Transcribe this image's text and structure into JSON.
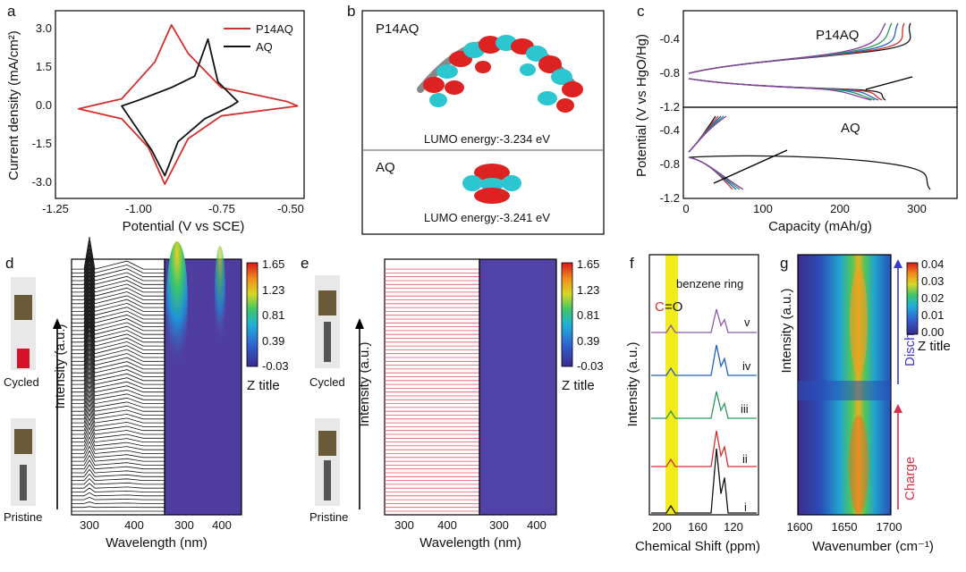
{
  "colors": {
    "p14aq": "#d0302e",
    "aq": "#111111",
    "highlight": "#f2ec1e",
    "discharge_arrow": "#3a3ac8",
    "charge_arrow": "#d8304a"
  },
  "panels": {
    "a": {
      "letter": "a",
      "ylabel": "Current density (mA/cm²)",
      "xlabel": "Potential (V vs SCE)",
      "xticks": [
        "-1.25",
        "-1.00",
        "-0.75",
        "-0.50"
      ],
      "yticks": [
        "3.0",
        "1.5",
        "0.0",
        "-1.5",
        "-3.0"
      ],
      "legend": [
        "P14AQ",
        "AQ"
      ]
    },
    "b": {
      "letter": "b",
      "top_label": "P14AQ",
      "top_energy": "LUMO energy:-3.234 eV",
      "bottom_label": "AQ",
      "bottom_energy": "LUMO energy:-3.241 eV"
    },
    "c": {
      "letter": "c",
      "ylabel": "Potential (V vs HgO/Hg)",
      "xlabel": "Capacity (mAh/g)",
      "xticks": [
        "0",
        "100",
        "200",
        "300"
      ],
      "yticks_top": [
        "-0.4",
        "-0.8",
        "-1.2"
      ],
      "yticks_bottom": [
        "-0.4",
        "-0.8",
        "-1.2"
      ],
      "top_label": "P14AQ",
      "bottom_label": "AQ"
    },
    "d": {
      "letter": "d",
      "photo_top": "Cycled",
      "photo_bottom": "Pristine",
      "ylabel": "Intensity (a.u.)",
      "xlabel": "Wavelength (nm)",
      "xticks_left": [
        "300",
        "400"
      ],
      "xticks_right": [
        "300",
        "400"
      ],
      "cbar_ticks": [
        "1.65",
        "1.23",
        "0.81",
        "0.39",
        "-0.03"
      ],
      "cbar_title": "Z title"
    },
    "e": {
      "letter": "e",
      "photo_top": "Cycled",
      "photo_bottom": "Pristine",
      "ylabel": "Intensity (a.u.)",
      "xlabel": "Wavelength (nm)",
      "xticks_left": [
        "300",
        "400"
      ],
      "xticks_right": [
        "300",
        "400"
      ],
      "cbar_ticks": [
        "1.65",
        "1.23",
        "0.81",
        "0.39",
        "-0.03"
      ],
      "cbar_title": "Z title"
    },
    "f": {
      "letter": "f",
      "ylabel": "Intensity (a.u.)",
      "xlabel": "Chemical Shift (ppm)",
      "xticks": [
        "200",
        "160",
        "120"
      ],
      "annot_co_c": "C",
      "annot_co_o": "=O",
      "annot_benzene": "benzene ring",
      "trace_labels": [
        "v",
        "iv",
        "iii",
        "ii",
        "i"
      ]
    },
    "g": {
      "letter": "g",
      "ylabel": "Intensity (a.u.)",
      "xlabel": "Wavenumber (cm⁻¹)",
      "xticks": [
        "1600",
        "1650",
        "1700"
      ],
      "cbar_ticks": [
        "0.04",
        "0.03",
        "0.02",
        "0.01",
        "0.00"
      ],
      "cbar_title": "Z title",
      "discharge": "Discharge",
      "charge": "Charge"
    }
  },
  "chart_data": [
    {
      "type": "line",
      "panel": "a",
      "xlim": [
        -1.25,
        -0.5
      ],
      "ylim": [
        -3.3,
        3.3
      ],
      "series": [
        {
          "name": "P14AQ",
          "x": [
            -1.18,
            -1.05,
            -0.95,
            -0.9,
            -0.85,
            -0.75,
            -0.55,
            -0.52,
            -0.75,
            -0.85,
            -0.92,
            -0.97,
            -1.05,
            -1.18
          ],
          "y": [
            -0.15,
            0.2,
            1.5,
            2.8,
            1.8,
            0.6,
            0.1,
            -0.05,
            -0.4,
            -1.2,
            -2.8,
            -1.5,
            -0.5,
            -0.15
          ]
        },
        {
          "name": "AQ",
          "x": [
            -1.05,
            -1.0,
            -0.9,
            -0.83,
            -0.79,
            -0.76,
            -0.7,
            -0.72,
            -0.8,
            -0.88,
            -0.92,
            -0.96,
            -1.05
          ],
          "y": [
            -0.05,
            0.15,
            0.6,
            1.0,
            2.3,
            0.8,
            0.1,
            -0.05,
            -0.5,
            -1.3,
            -2.5,
            -1.6,
            -0.05
          ]
        }
      ]
    },
    {
      "type": "line",
      "panel": "c",
      "xlim": [
        0,
        340
      ],
      "series_count_top": 5,
      "series_count_bottom": 5
    },
    {
      "type": "heatmap",
      "panel": "d",
      "zlim": [
        -0.03,
        1.65
      ]
    },
    {
      "type": "heatmap",
      "panel": "e",
      "zlim": [
        -0.03,
        1.65
      ]
    },
    {
      "type": "line",
      "panel": "f",
      "xlim": [
        220,
        85
      ],
      "series_names": [
        "v",
        "iv",
        "iii",
        "ii",
        "i"
      ]
    },
    {
      "type": "heatmap",
      "panel": "g",
      "xlim": [
        1600,
        1700
      ],
      "zlim": [
        0,
        0.04
      ]
    }
  ]
}
